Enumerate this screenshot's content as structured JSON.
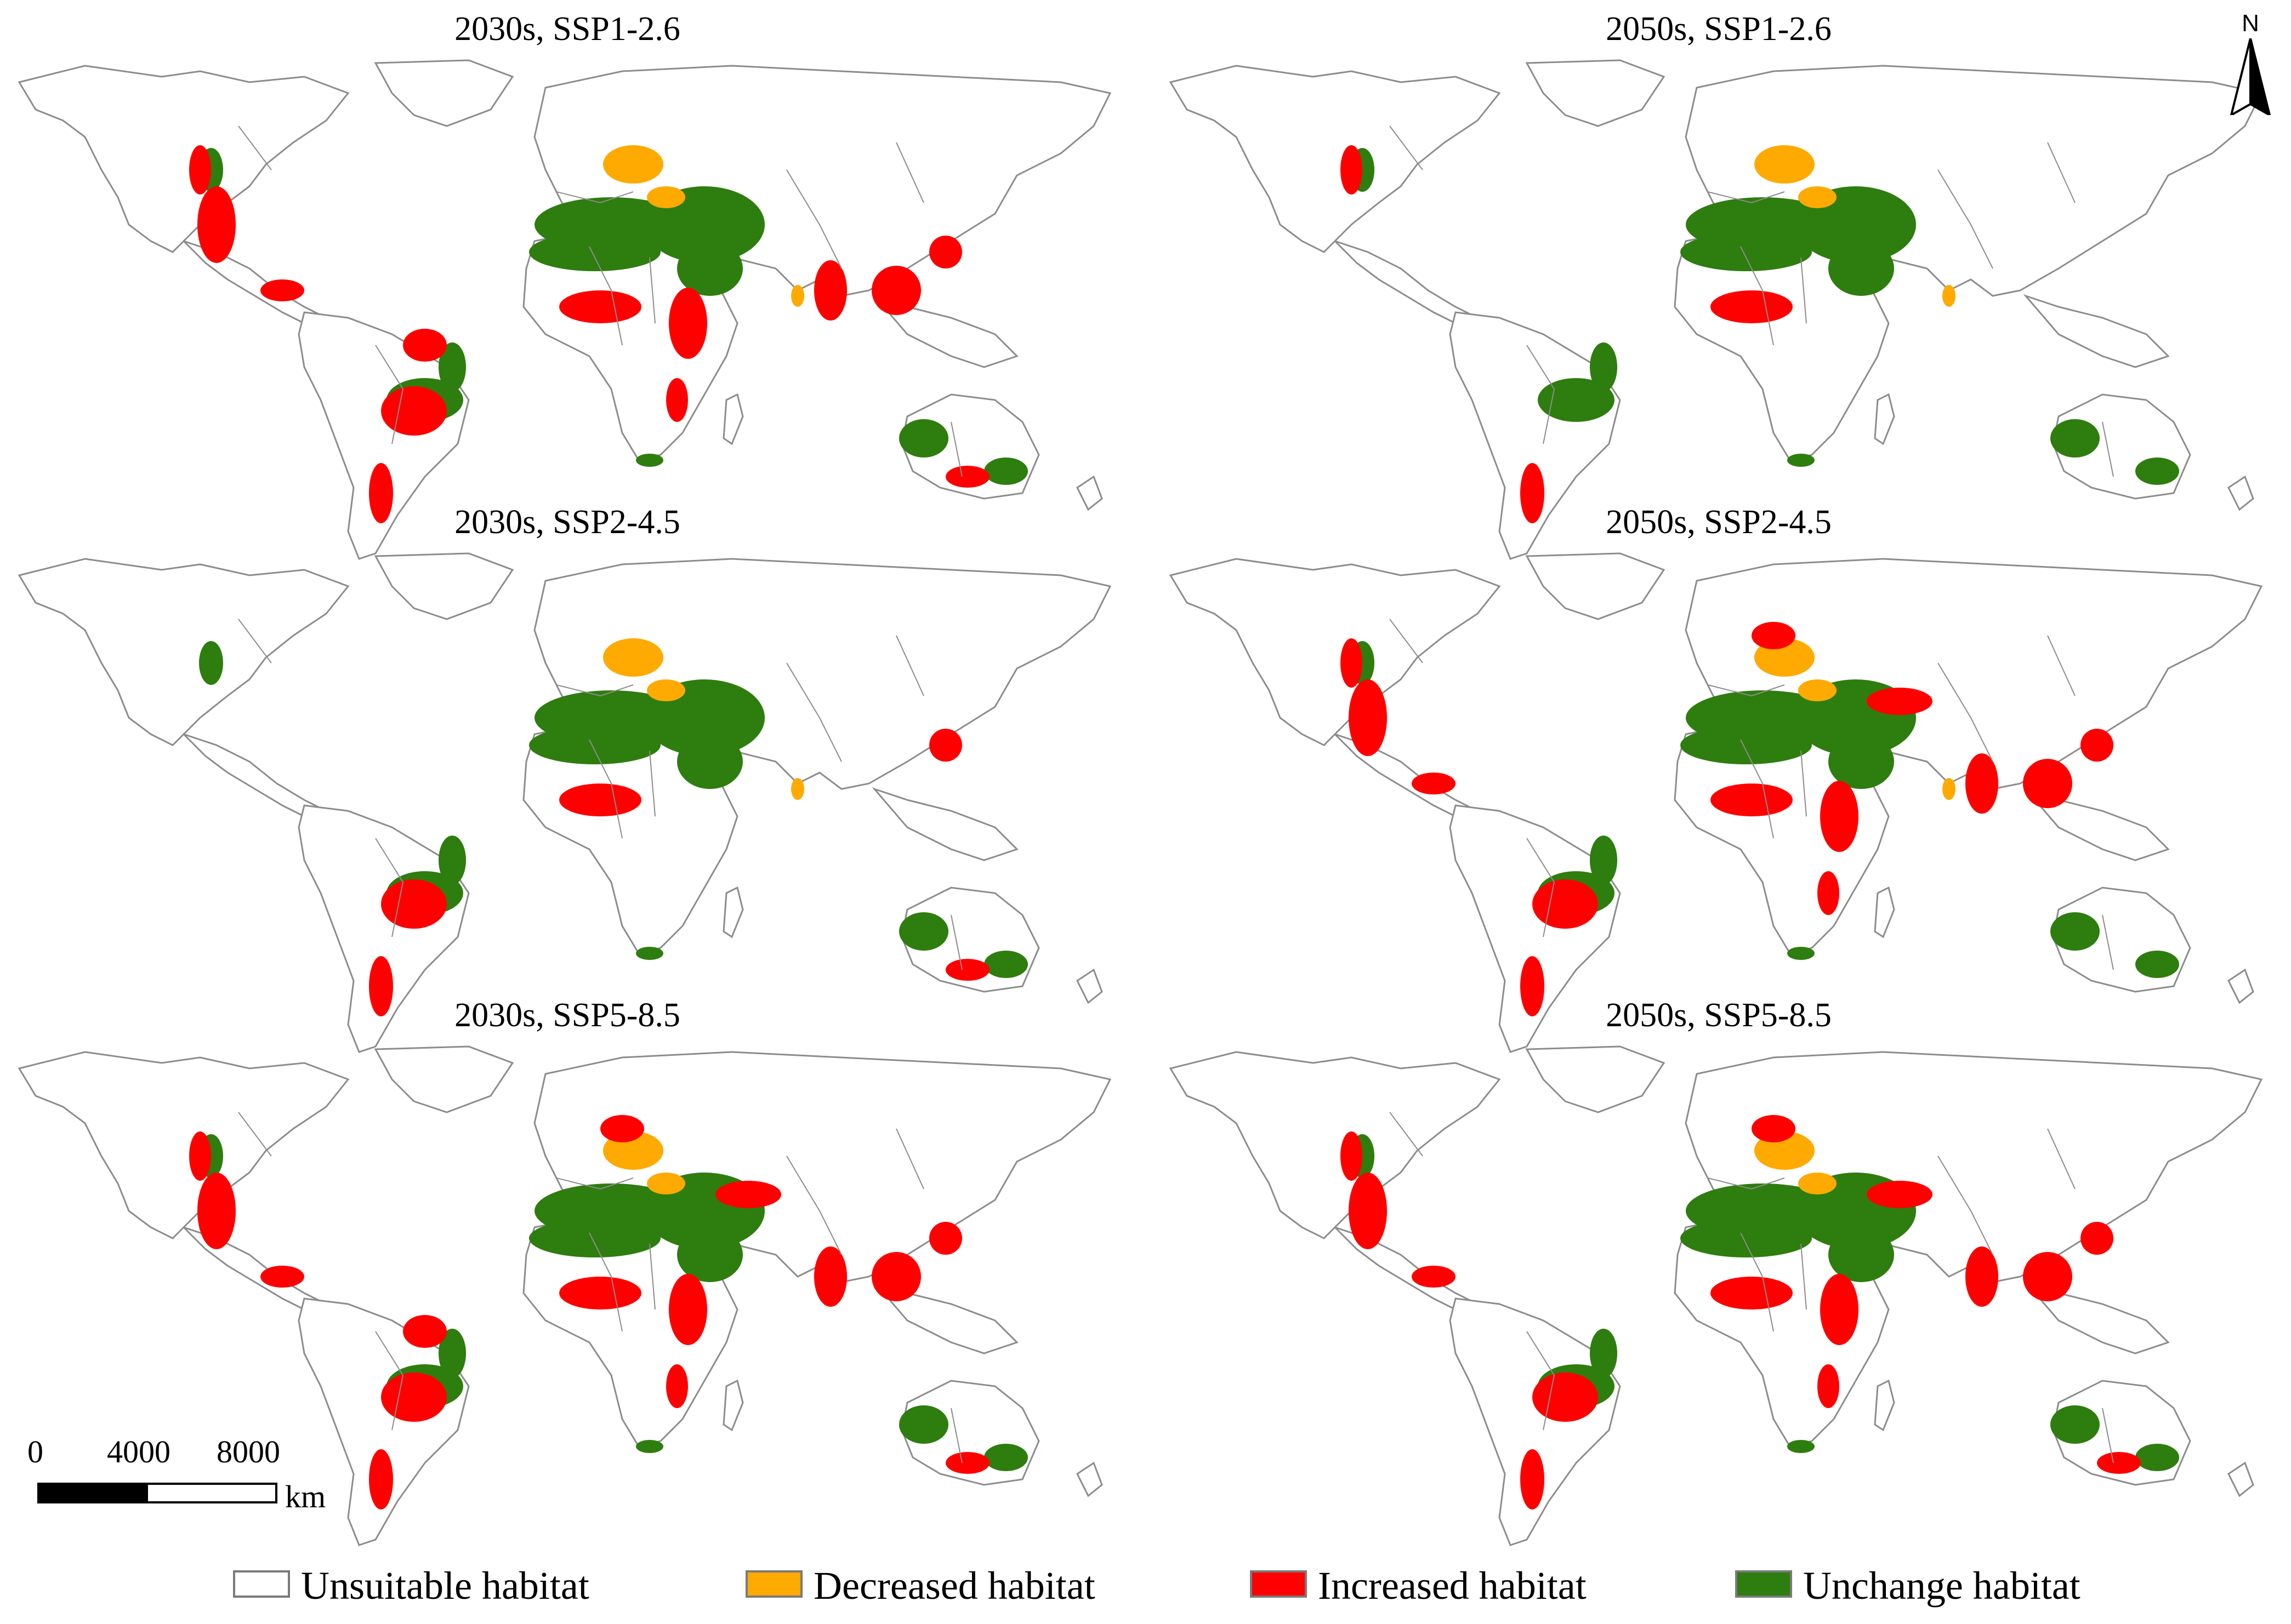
{
  "panels": [
    {
      "title": "2030s, SSP1-2.6",
      "variant": 0
    },
    {
      "title": "2050s, SSP1-2.6",
      "variant": 1
    },
    {
      "title": "2030s, SSP2-4.5",
      "variant": 2
    },
    {
      "title": "2050s, SSP2-4.5",
      "variant": 3
    },
    {
      "title": "2030s, SSP5-8.5",
      "variant": 4
    },
    {
      "title": "2050s, SSP5-8.5",
      "variant": 5
    }
  ],
  "scale_bar": {
    "ticks": [
      "0",
      "4000",
      "8000"
    ],
    "unit": "km"
  },
  "north_arrow": {
    "label": "N",
    "icon": "north-arrow-icon"
  },
  "legend": [
    {
      "label": "Unsuitable habitat",
      "color": "#ffffff"
    },
    {
      "label": "Decreased habitat",
      "color": "#ffaa00"
    },
    {
      "label": "Increased habitat",
      "color": "#ff0000"
    },
    {
      "label": "Unchange habitat",
      "color": "#2e7d0f"
    }
  ],
  "colors": {
    "boundary": "#8c8c8c",
    "unchanged": "#2e7d0f",
    "increased": "#ff0000",
    "decreased": "#ffaa00"
  }
}
